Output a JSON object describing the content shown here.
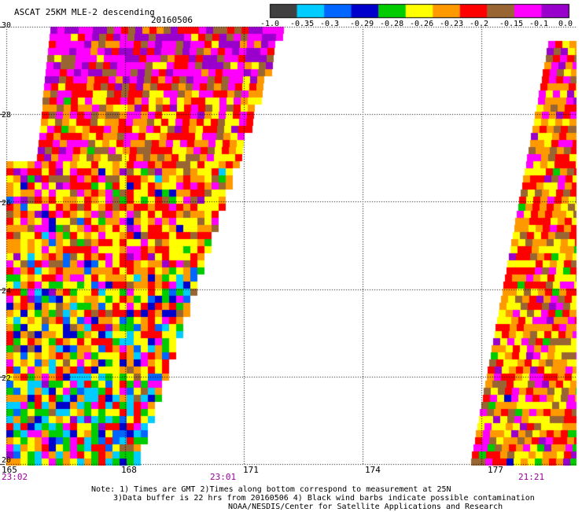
{
  "title": "ASCAT 25KM MLE-2 descending",
  "date": "20160506",
  "colorbar": {
    "labels": [
      "-1.0",
      "-0.35",
      "-0.3",
      "-0.29",
      "-0.28",
      "-0.26",
      "-0.23",
      "-0.2",
      "-0.15",
      "-0.1",
      "0.0"
    ],
    "colors": [
      "#404040",
      "#00ccff",
      "#0066ff",
      "#0000cc",
      "#00cc00",
      "#ffff00",
      "#ff9900",
      "#ff0000",
      "#996633",
      "#ff00ff",
      "#9900cc"
    ]
  },
  "axes": {
    "y_ticks": [
      "30",
      "28",
      "26",
      "24",
      "22",
      "20"
    ],
    "x_ticks": [
      "165",
      "168",
      "171",
      "174",
      "177"
    ],
    "lat_range": [
      20,
      30
    ],
    "lon_range": [
      165,
      179.4
    ]
  },
  "times": [
    "23:02",
    "23:01",
    "21:21"
  ],
  "notes": {
    "line1": "Note: 1) Times are GMT 2)Times along bottom correspond to measurement at 25N",
    "line2": "3)Data buffer is 22 hrs from 20160506 4) Black wind barbs indicate possible contamination",
    "line3": "NOAA/NESDIS/Center for Satellite Applications and Research"
  }
}
